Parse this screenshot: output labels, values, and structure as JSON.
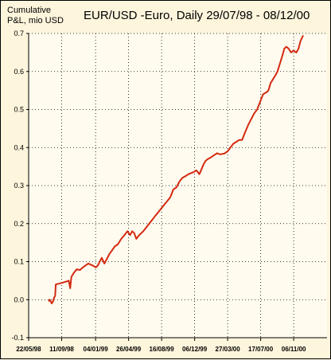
{
  "chart_data": {
    "type": "line",
    "title": "EUR/USD -Euro, Daily 29/07/98 - 08/12/00",
    "ylabel_lines": [
      "Cumulative",
      "P&L, mio USD"
    ],
    "xlabel": "",
    "x_ticks": [
      "22/05/98",
      "11/09/98",
      "04/01/99",
      "26/04/99",
      "16/08/99",
      "06/12/99",
      "27/03/00",
      "17/07/00",
      "06/11/00"
    ],
    "y_ticks": [
      -0.1,
      0.0,
      0.1,
      0.2,
      0.3,
      0.4,
      0.5,
      0.6,
      0.7
    ],
    "ylim": [
      -0.1,
      0.7
    ],
    "xlim": [
      "22/05/98",
      "27/02/01"
    ],
    "grid": true,
    "legend": "none",
    "series": [
      {
        "color": "#d42a10",
        "points": [
          [
            "29/07/98",
            -0.005
          ],
          [
            "01/08/98",
            0.0
          ],
          [
            "04/08/98",
            -0.003
          ],
          [
            "08/08/98",
            -0.01
          ],
          [
            "12/08/98",
            -0.006
          ],
          [
            "16/08/98",
            0.005
          ],
          [
            "20/08/98",
            0.01
          ],
          [
            "22/08/98",
            0.04
          ],
          [
            "01/09/98",
            0.042
          ],
          [
            "15/09/98",
            0.045
          ],
          [
            "28/09/98",
            0.048
          ],
          [
            "05/10/98",
            0.05
          ],
          [
            "10/10/98",
            0.03
          ],
          [
            "14/10/98",
            0.06
          ],
          [
            "22/10/98",
            0.07
          ],
          [
            "01/11/98",
            0.08
          ],
          [
            "12/11/98",
            0.078
          ],
          [
            "22/11/98",
            0.085
          ],
          [
            "10/12/98",
            0.095
          ],
          [
            "25/12/98",
            0.09
          ],
          [
            "05/01/99",
            0.085
          ],
          [
            "12/01/99",
            0.09
          ],
          [
            "18/01/99",
            0.1
          ],
          [
            "25/01/99",
            0.11
          ],
          [
            "03/02/99",
            0.095
          ],
          [
            "10/02/99",
            0.105
          ],
          [
            "20/02/99",
            0.12
          ],
          [
            "01/03/99",
            0.13
          ],
          [
            "10/03/99",
            0.14
          ],
          [
            "20/03/99",
            0.145
          ],
          [
            "01/04/99",
            0.16
          ],
          [
            "12/04/99",
            0.17
          ],
          [
            "22/04/99",
            0.18
          ],
          [
            "01/05/99",
            0.17
          ],
          [
            "08/05/99",
            0.18
          ],
          [
            "15/05/99",
            0.175
          ],
          [
            "22/05/99",
            0.16
          ],
          [
            "01/06/99",
            0.17
          ],
          [
            "15/06/99",
            0.18
          ],
          [
            "25/06/99",
            0.19
          ],
          [
            "05/07/99",
            0.2
          ],
          [
            "15/07/99",
            0.21
          ],
          [
            "25/07/99",
            0.22
          ],
          [
            "05/08/99",
            0.23
          ],
          [
            "15/08/99",
            0.24
          ],
          [
            "25/08/99",
            0.25
          ],
          [
            "05/09/99",
            0.26
          ],
          [
            "15/09/99",
            0.27
          ],
          [
            "25/09/99",
            0.29
          ],
          [
            "05/10/99",
            0.295
          ],
          [
            "15/10/99",
            0.31
          ],
          [
            "25/10/99",
            0.32
          ],
          [
            "05/11/99",
            0.325
          ],
          [
            "15/11/99",
            0.33
          ],
          [
            "01/12/99",
            0.335
          ],
          [
            "12/12/99",
            0.34
          ],
          [
            "22/12/99",
            0.33
          ],
          [
            "05/01/00",
            0.355
          ],
          [
            "12/01/00",
            0.365
          ],
          [
            "20/01/00",
            0.37
          ],
          [
            "01/02/00",
            0.375
          ],
          [
            "10/02/00",
            0.38
          ],
          [
            "20/02/00",
            0.385
          ],
          [
            "01/03/00",
            0.382
          ],
          [
            "15/03/00",
            0.384
          ],
          [
            "27/03/00",
            0.39
          ],
          [
            "05/04/00",
            0.4
          ],
          [
            "15/04/00",
            0.41
          ],
          [
            "25/04/00",
            0.415
          ],
          [
            "05/05/00",
            0.42
          ],
          [
            "15/05/00",
            0.42
          ],
          [
            "25/05/00",
            0.44
          ],
          [
            "05/06/00",
            0.46
          ],
          [
            "15/06/00",
            0.475
          ],
          [
            "25/06/00",
            0.49
          ],
          [
            "05/07/00",
            0.5
          ],
          [
            "15/07/00",
            0.52
          ],
          [
            "25/07/00",
            0.54
          ],
          [
            "05/08/00",
            0.545
          ],
          [
            "12/08/00",
            0.55
          ],
          [
            "20/08/00",
            0.57
          ],
          [
            "28/08/00",
            0.58
          ],
          [
            "05/09/00",
            0.59
          ],
          [
            "12/09/00",
            0.6
          ],
          [
            "20/09/00",
            0.62
          ],
          [
            "28/09/00",
            0.64
          ],
          [
            "05/10/00",
            0.66
          ],
          [
            "12/10/00",
            0.665
          ],
          [
            "20/10/00",
            0.66
          ],
          [
            "28/10/00",
            0.65
          ],
          [
            "05/11/00",
            0.655
          ],
          [
            "15/11/00",
            0.65
          ],
          [
            "22/11/00",
            0.66
          ],
          [
            "29/11/00",
            0.68
          ],
          [
            "05/12/00",
            0.69
          ],
          [
            "08/12/00",
            0.695
          ]
        ]
      }
    ]
  }
}
